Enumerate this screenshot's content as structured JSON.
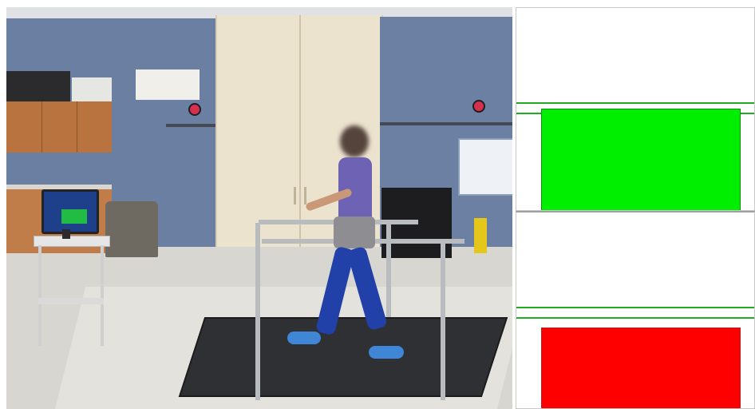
{
  "panels": {
    "line_color": "#22aa22",
    "top": {
      "block_color": "#00ee00",
      "state": "green"
    },
    "bottom": {
      "block_color": "#ff0000",
      "state": "red"
    }
  },
  "monitor_screen_color": "#22bb44"
}
